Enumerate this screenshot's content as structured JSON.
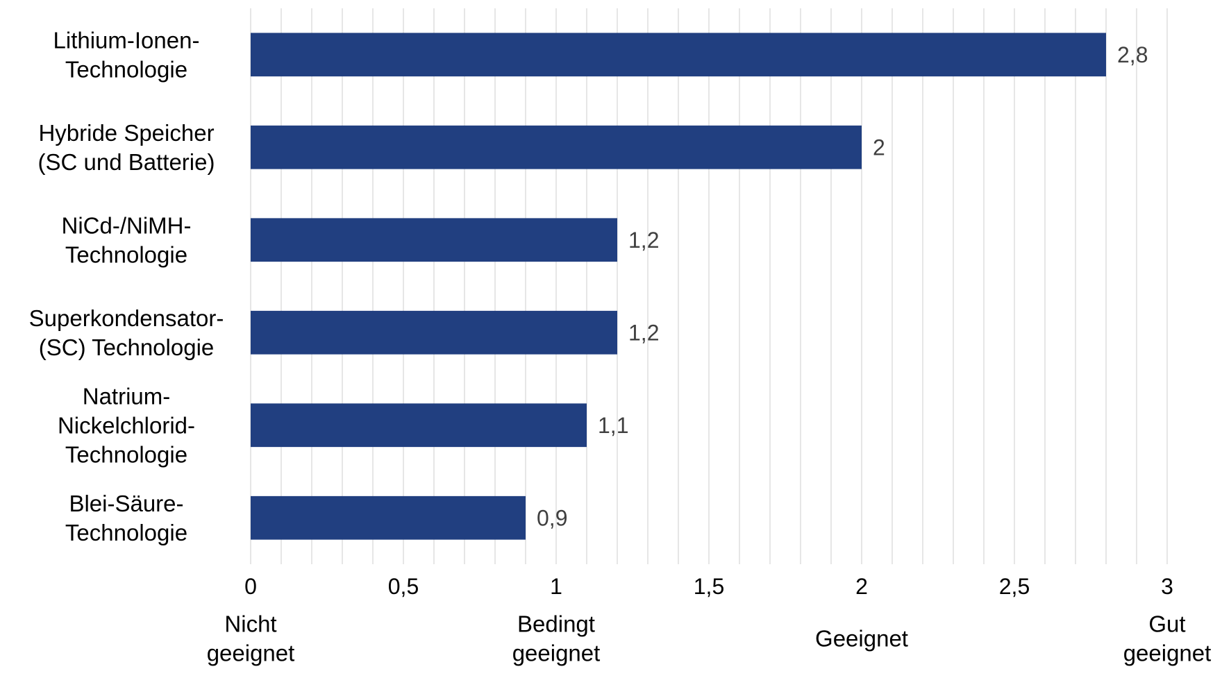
{
  "chart_data": {
    "type": "bar",
    "orientation": "horizontal",
    "categories": [
      [
        "Lithium-Ionen-",
        "Technologie"
      ],
      [
        "Hybride Speicher",
        "(SC und Batterie)"
      ],
      [
        "NiCd-/NiMH-",
        "Technologie"
      ],
      [
        "Superkondensator-",
        "(SC) Technologie"
      ],
      [
        "Natrium-",
        "Nickelchlorid-",
        "Technologie"
      ],
      [
        "Blei-Säure-",
        "Technologie"
      ]
    ],
    "values": [
      2.8,
      2,
      1.2,
      1.2,
      1.1,
      0.9
    ],
    "value_labels": [
      "2,8",
      "2",
      "1,2",
      "1,2",
      "1,1",
      "0,9"
    ],
    "xlim": [
      0,
      3
    ],
    "ticks": [
      {
        "value": 0,
        "label": "0"
      },
      {
        "value": 0.5,
        "label": "0,5"
      },
      {
        "value": 1,
        "label": "1"
      },
      {
        "value": 1.5,
        "label": "1,5"
      },
      {
        "value": 2,
        "label": "2"
      },
      {
        "value": 2.5,
        "label": "2,5"
      },
      {
        "value": 3,
        "label": "3"
      }
    ],
    "minor_grid_step": 0.1,
    "rating_labels": [
      {
        "value": 0,
        "lines": [
          "Nicht",
          "geeignet"
        ]
      },
      {
        "value": 1,
        "lines": [
          "Bedingt",
          "geeignet"
        ]
      },
      {
        "value": 2,
        "lines": [
          "Geeignet"
        ]
      },
      {
        "value": 3,
        "lines": [
          "Gut",
          "geeignet"
        ]
      }
    ],
    "colors": {
      "bar": "#213F80",
      "grid": "#D9D9D9",
      "value_label": "#404040"
    },
    "grid": true,
    "legend": "none"
  }
}
